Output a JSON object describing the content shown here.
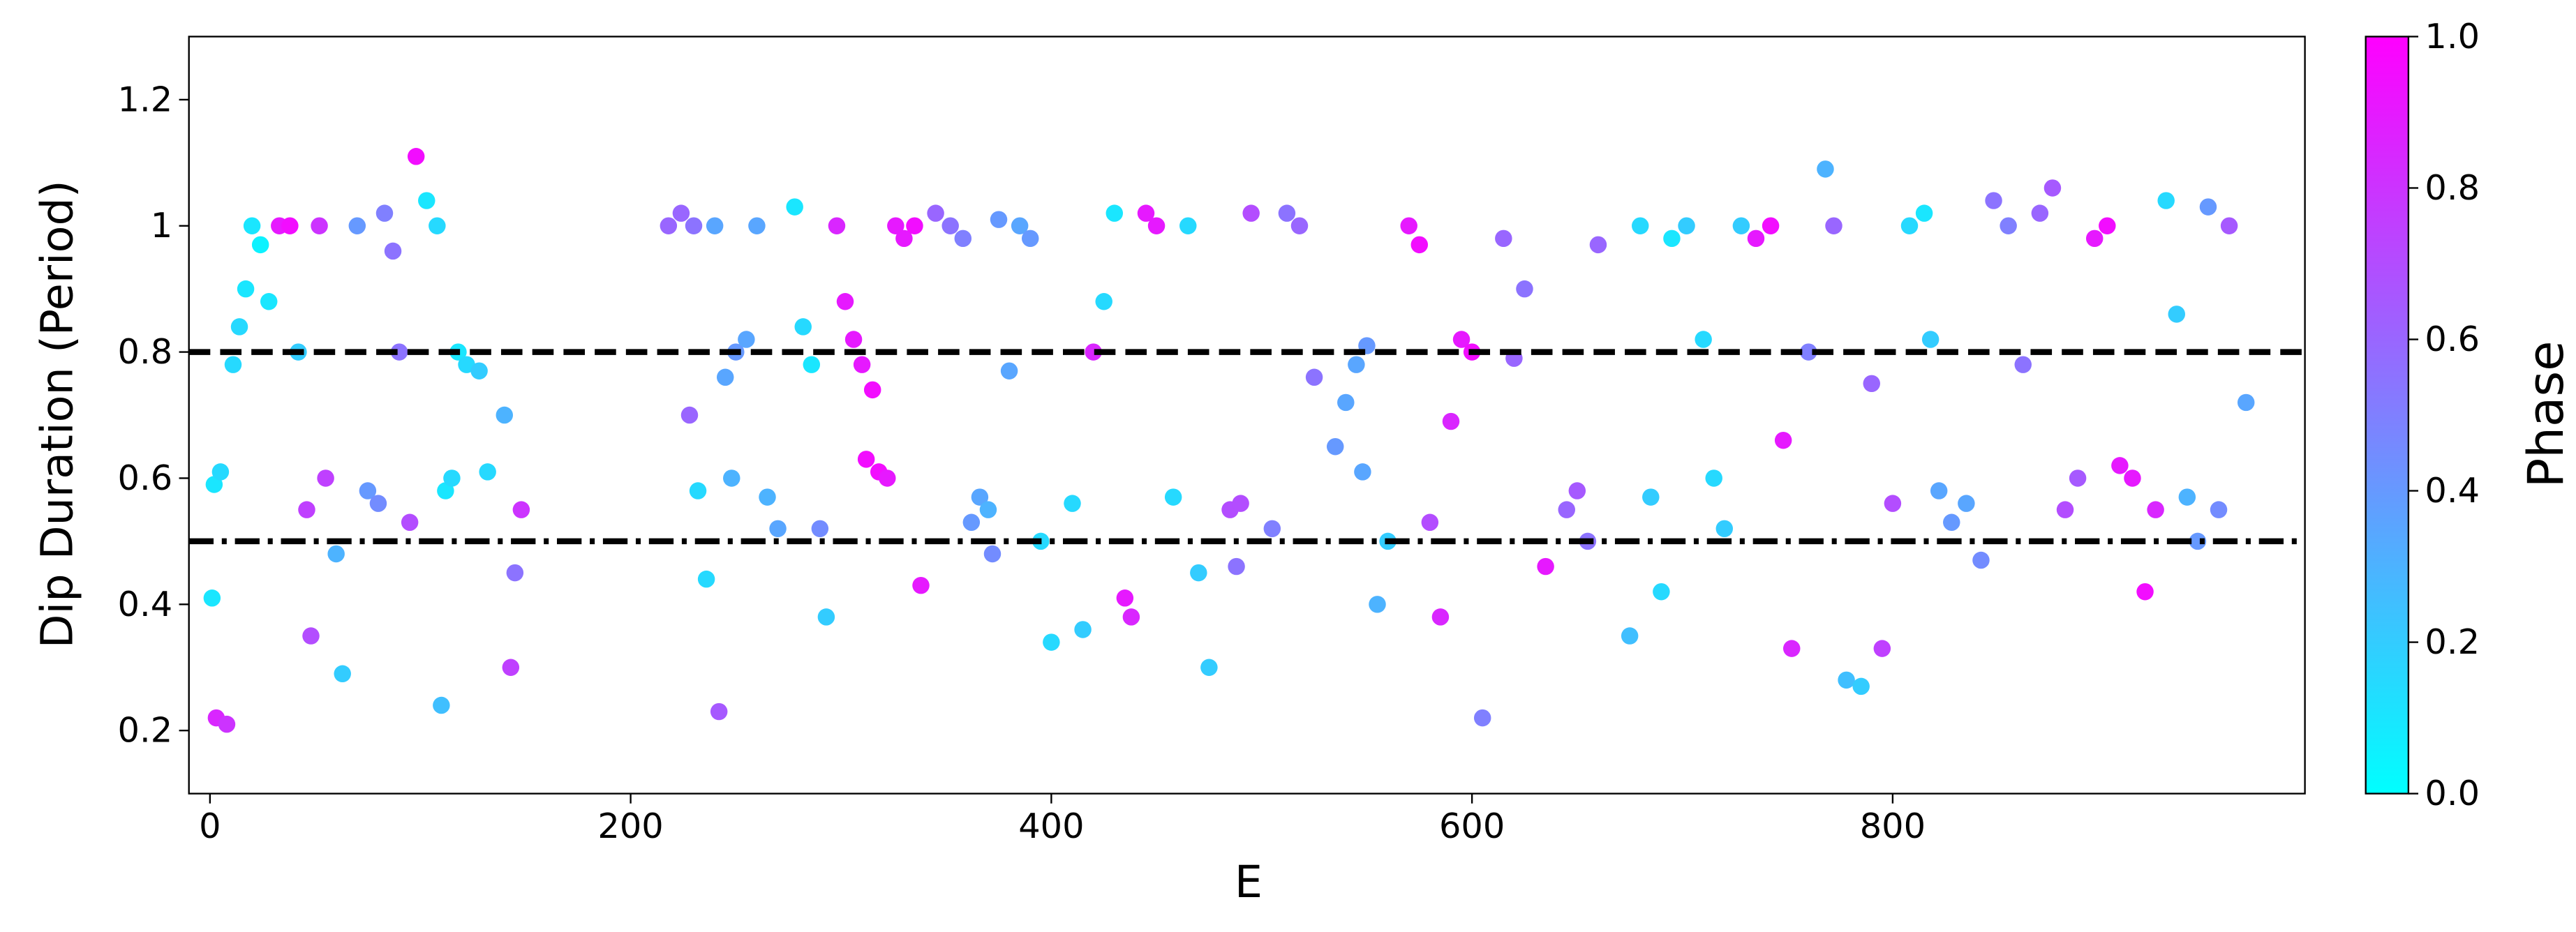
{
  "chart_data": {
    "type": "scatter",
    "xlabel": "E",
    "ylabel": "Dip Duration (Period)",
    "colorbar_label": "Phase",
    "colormap": "cool",
    "xlim": [
      -10,
      996
    ],
    "ylim": [
      0.1,
      1.3
    ],
    "xticks": [
      0,
      200,
      400,
      600,
      800
    ],
    "yticks": [
      0.2,
      0.4,
      0.6,
      0.8,
      1.0,
      1.2
    ],
    "clim": [
      0,
      1
    ],
    "cticks": [
      {
        "value": 0,
        "label": "0.0"
      },
      0.2,
      0.4,
      0.6,
      0.8,
      {
        "value": 1,
        "label": "1.0"
      }
    ],
    "hlines": [
      {
        "y": 0.8,
        "style": "dashed"
      },
      {
        "y": 0.5,
        "style": "dashdot"
      }
    ],
    "x": [
      2,
      5,
      1,
      3,
      8,
      11,
      14,
      17,
      20,
      24,
      28,
      33,
      38,
      42,
      46,
      48,
      52,
      55,
      60,
      63,
      70,
      75,
      80,
      83,
      87,
      90,
      95,
      98,
      103,
      108,
      112,
      115,
      118,
      122,
      128,
      110,
      132,
      140,
      145,
      148,
      143,
      218,
      224,
      230,
      228,
      232,
      236,
      240,
      245,
      250,
      255,
      248,
      242,
      260,
      265,
      270,
      278,
      282,
      286,
      290,
      293,
      298,
      302,
      306,
      310,
      315,
      312,
      318,
      322,
      326,
      330,
      335,
      338,
      345,
      352,
      358,
      362,
      366,
      370,
      372,
      375,
      380,
      385,
      390,
      395,
      400,
      410,
      415,
      420,
      425,
      430,
      435,
      438,
      445,
      450,
      458,
      465,
      470,
      475,
      485,
      490,
      495,
      488,
      505,
      512,
      518,
      525,
      535,
      540,
      545,
      550,
      548,
      555,
      560,
      570,
      575,
      580,
      585,
      590,
      595,
      600,
      605,
      615,
      620,
      625,
      635,
      645,
      650,
      655,
      660,
      675,
      680,
      685,
      690,
      695,
      702,
      710,
      715,
      720,
      728,
      735,
      742,
      748,
      752,
      760,
      768,
      772,
      778,
      785,
      790,
      795,
      800,
      808,
      815,
      818,
      822,
      828,
      835,
      842,
      848,
      855,
      862,
      870,
      876,
      882,
      888,
      896,
      902,
      908,
      914,
      920,
      925,
      930,
      935,
      940,
      945,
      950,
      955,
      960,
      968
    ],
    "values": [
      0.59,
      0.61,
      0.41,
      0.22,
      0.21,
      0.78,
      0.84,
      0.9,
      1.0,
      0.97,
      0.88,
      1.0,
      1.0,
      0.8,
      0.55,
      0.35,
      1.0,
      0.6,
      0.48,
      0.29,
      1.0,
      0.58,
      0.56,
      1.02,
      0.96,
      0.8,
      0.53,
      1.11,
      1.04,
      1.0,
      0.58,
      0.6,
      0.8,
      0.78,
      0.77,
      0.24,
      0.61,
      0.7,
      0.45,
      0.55,
      0.3,
      1.0,
      1.02,
      1.0,
      0.7,
      0.58,
      0.44,
      1.0,
      0.76,
      0.8,
      0.82,
      0.6,
      0.23,
      1.0,
      0.57,
      0.52,
      1.03,
      0.84,
      0.78,
      0.52,
      0.38,
      1.0,
      0.88,
      0.82,
      0.78,
      0.74,
      0.63,
      0.61,
      0.6,
      1.0,
      0.98,
      1.0,
      0.43,
      1.02,
      1.0,
      0.98,
      0.53,
      0.57,
      0.55,
      0.48,
      1.01,
      0.77,
      1.0,
      0.98,
      0.5,
      0.34,
      0.56,
      0.36,
      0.8,
      0.88,
      1.02,
      0.41,
      0.38,
      1.02,
      1.0,
      0.57,
      1.0,
      0.45,
      0.3,
      0.55,
      0.56,
      1.02,
      0.46,
      0.52,
      1.02,
      1.0,
      0.76,
      0.65,
      0.72,
      0.78,
      0.81,
      0.61,
      0.4,
      0.5,
      1.0,
      0.97,
      0.53,
      0.38,
      0.69,
      0.82,
      0.8,
      0.22,
      0.98,
      0.79,
      0.9,
      0.46,
      0.55,
      0.58,
      0.5,
      0.97,
      0.35,
      1.0,
      0.57,
      0.42,
      0.98,
      1.0,
      0.82,
      0.6,
      0.52,
      1.0,
      0.98,
      1.0,
      0.66,
      0.33,
      0.8,
      1.09,
      1.0,
      0.28,
      0.27,
      0.75,
      0.33,
      0.56,
      1.0,
      1.02,
      0.82,
      0.58,
      0.53,
      0.56,
      0.47,
      1.04,
      1.0,
      0.78,
      1.02,
      1.06,
      0.55,
      0.6,
      0.98,
      1.0,
      0.62,
      0.6,
      0.42,
      0.55,
      1.04,
      0.86,
      0.57,
      0.5,
      1.03,
      0.55,
      1.0,
      0.72
    ],
    "phase": [
      0.1,
      0.15,
      0.1,
      0.85,
      0.8,
      0.15,
      0.15,
      0.1,
      0.1,
      0.05,
      0.1,
      0.9,
      0.95,
      0.2,
      0.75,
      0.7,
      0.8,
      0.75,
      0.3,
      0.2,
      0.4,
      0.4,
      0.45,
      0.5,
      0.55,
      0.55,
      0.7,
      0.95,
      0.1,
      0.15,
      0.1,
      0.15,
      0.1,
      0.15,
      0.2,
      0.25,
      0.15,
      0.3,
      0.55,
      0.8,
      0.75,
      0.6,
      0.6,
      0.55,
      0.6,
      0.15,
      0.15,
      0.35,
      0.35,
      0.4,
      0.35,
      0.3,
      0.65,
      0.35,
      0.3,
      0.35,
      0.1,
      0.15,
      0.1,
      0.45,
      0.2,
      0.85,
      0.9,
      0.9,
      0.9,
      0.95,
      0.95,
      0.95,
      0.9,
      0.9,
      0.9,
      0.95,
      0.9,
      0.6,
      0.55,
      0.5,
      0.4,
      0.35,
      0.3,
      0.45,
      0.4,
      0.35,
      0.35,
      0.4,
      0.15,
      0.15,
      0.15,
      0.2,
      0.85,
      0.15,
      0.1,
      0.9,
      0.85,
      0.9,
      0.9,
      0.15,
      0.15,
      0.2,
      0.2,
      0.7,
      0.7,
      0.7,
      0.55,
      0.5,
      0.55,
      0.6,
      0.55,
      0.4,
      0.35,
      0.35,
      0.4,
      0.35,
      0.3,
      0.2,
      0.9,
      0.95,
      0.7,
      0.85,
      0.85,
      0.9,
      0.95,
      0.5,
      0.6,
      0.6,
      0.55,
      0.9,
      0.6,
      0.65,
      0.55,
      0.6,
      0.25,
      0.15,
      0.2,
      0.15,
      0.1,
      0.2,
      0.15,
      0.15,
      0.2,
      0.2,
      0.9,
      0.95,
      0.9,
      0.85,
      0.5,
      0.3,
      0.6,
      0.25,
      0.2,
      0.6,
      0.75,
      0.7,
      0.15,
      0.1,
      0.2,
      0.35,
      0.4,
      0.35,
      0.45,
      0.55,
      0.5,
      0.55,
      0.6,
      0.65,
      0.7,
      0.65,
      0.9,
      0.95,
      0.9,
      0.9,
      0.95,
      0.85,
      0.15,
      0.2,
      0.3,
      0.4,
      0.4,
      0.45,
      0.65,
      0.35
    ]
  }
}
